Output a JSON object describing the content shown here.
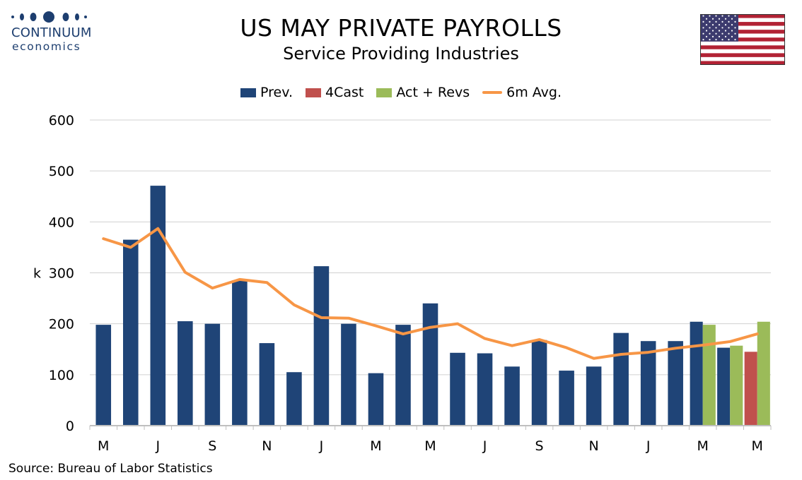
{
  "brand": {
    "name": "CONTINUUM",
    "sub": "economics",
    "color": "#1d3e6f"
  },
  "flag_icon": "us-flag-icon",
  "chart_data": {
    "type": "bar",
    "title": "US MAY PRIVATE PAYROLLS",
    "subtitle": "Service Providing Industries",
    "ylabel": "k",
    "ylim": [
      0,
      600
    ],
    "yticks": [
      0,
      100,
      200,
      300,
      400,
      500,
      600
    ],
    "grid": true,
    "legend_position": "top-center",
    "source": "Source: Bureau of Labor Statistics",
    "x_tick_labels": [
      "M",
      "J",
      "S",
      "N",
      "J",
      "M",
      "M",
      "J",
      "S",
      "N",
      "J",
      "M",
      "M"
    ],
    "series": [
      {
        "name": "Prev.",
        "type": "bar",
        "color": "#1f4477",
        "values": [
          198,
          365,
          471,
          205,
          200,
          285,
          162,
          105,
          313,
          200,
          103,
          198,
          240,
          143,
          142,
          116,
          168,
          108,
          116,
          182,
          166,
          166,
          204,
          153,
          null
        ]
      },
      {
        "name": "4Cast",
        "type": "bar",
        "color": "#c0504d",
        "values": [
          null,
          null,
          null,
          null,
          null,
          null,
          null,
          null,
          null,
          null,
          null,
          null,
          null,
          null,
          null,
          null,
          null,
          null,
          null,
          null,
          null,
          null,
          null,
          null,
          145
        ]
      },
      {
        "name": "Act + Revs",
        "type": "bar",
        "color": "#9bbb59",
        "values": [
          null,
          null,
          null,
          null,
          null,
          null,
          null,
          null,
          null,
          null,
          null,
          null,
          null,
          null,
          null,
          null,
          null,
          null,
          null,
          null,
          null,
          null,
          198,
          157,
          204
        ]
      },
      {
        "name": "6m Avg.",
        "type": "line",
        "color": "#f79646",
        "values": [
          367,
          350,
          387,
          301,
          270,
          287,
          281,
          237,
          212,
          211,
          196,
          180,
          193,
          200,
          171,
          157,
          169,
          153,
          132,
          140,
          144,
          152,
          158,
          165,
          180
        ]
      }
    ]
  }
}
